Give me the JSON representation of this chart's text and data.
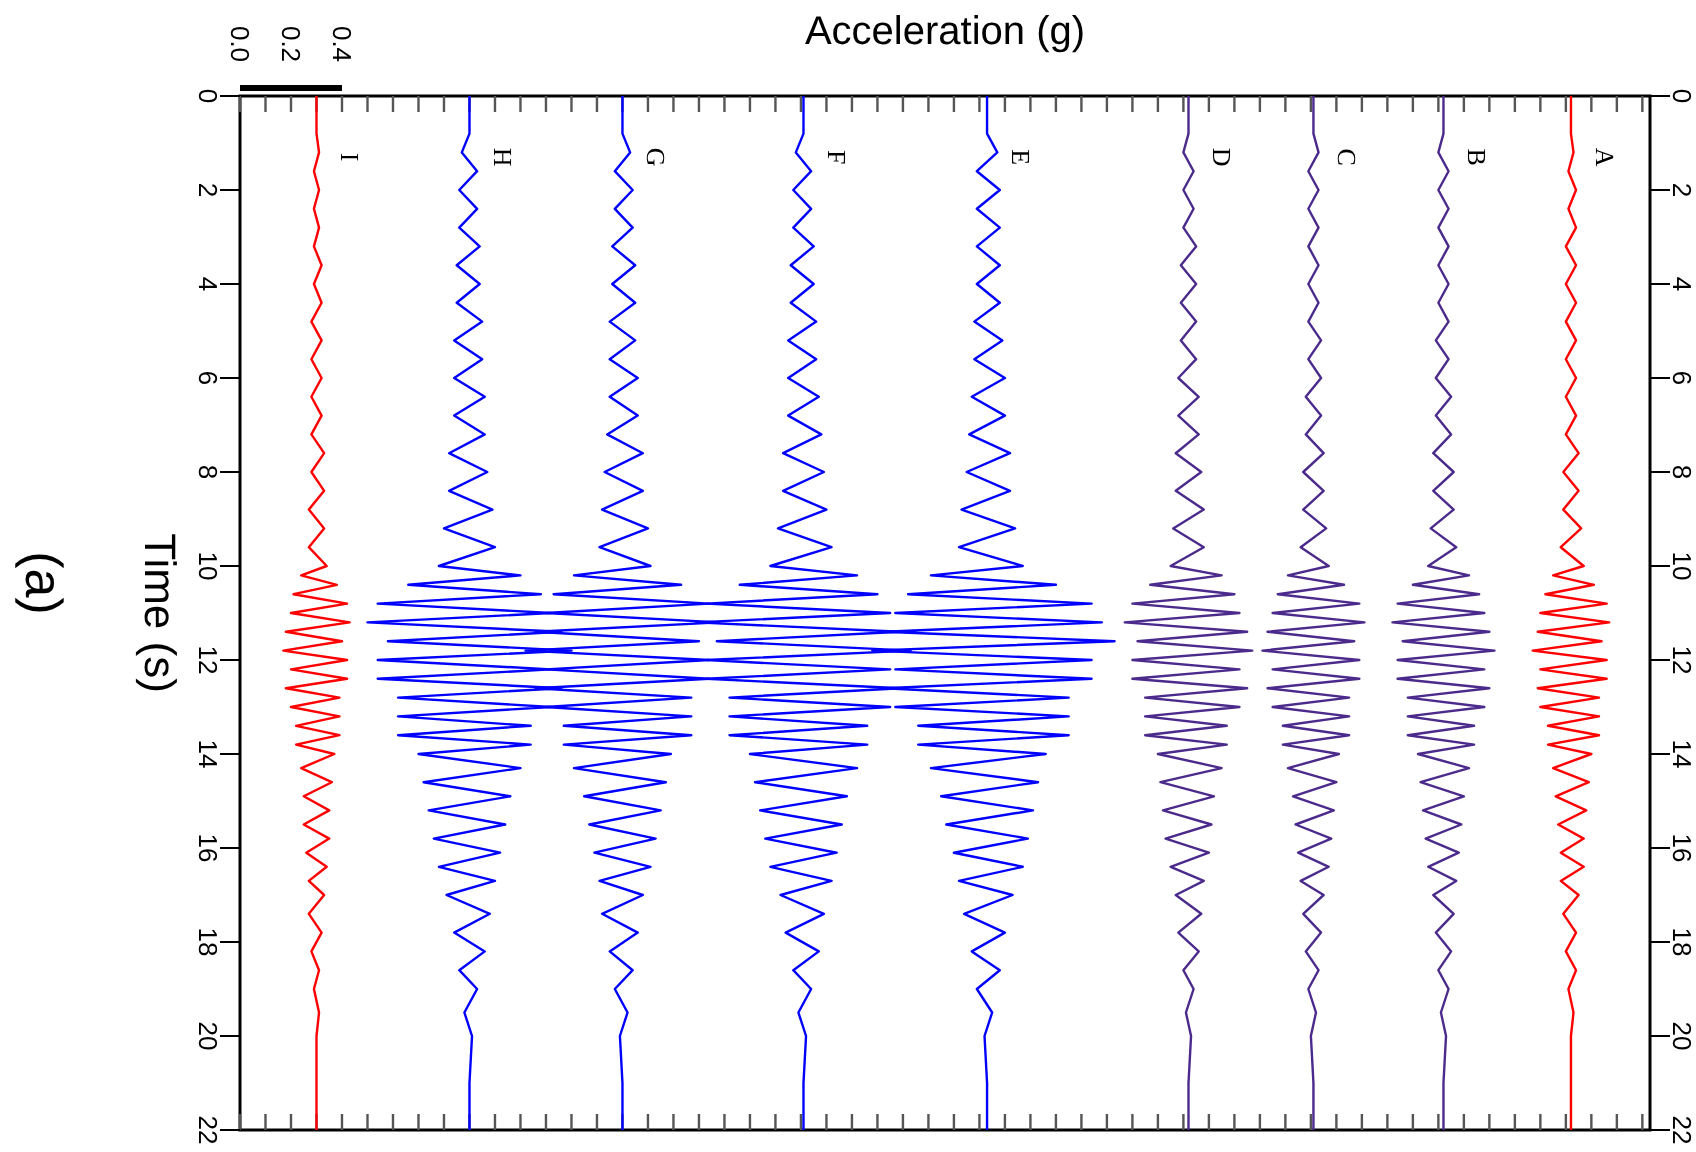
{
  "chart_data": {
    "type": "line",
    "xlabel": "Acceleration (g)",
    "ylabel": "Time (s)",
    "annotations": [
      "(a)"
    ],
    "xlim": [
      0,
      5.53
    ],
    "xticks": [
      {
        "value": 0,
        "label": "0.0"
      },
      {
        "value": 0.1,
        "label": null
      },
      0.2,
      {
        "value": 0.3,
        "label": null
      },
      0.4,
      {
        "value": 0.5,
        "label": null
      },
      {
        "value": 0.6,
        "label": null
      },
      {
        "value": 0.7,
        "label": null
      },
      {
        "value": 0.8,
        "label": null
      },
      {
        "value": 0.9,
        "label": null
      },
      {
        "value": 1,
        "label": null
      },
      {
        "value": 1.1,
        "label": null
      },
      {
        "value": 1.2,
        "label": null
      },
      {
        "value": 1.3,
        "label": null
      },
      {
        "value": 1.4,
        "label": null
      },
      {
        "value": 1.5,
        "label": null
      },
      {
        "value": 1.6,
        "label": null
      },
      {
        "value": 1.7,
        "label": null
      },
      {
        "value": 1.8,
        "label": null
      },
      {
        "value": 1.9,
        "label": null
      },
      {
        "value": 2,
        "label": null
      },
      {
        "value": 2.1,
        "label": null
      },
      {
        "value": 2.2,
        "label": null
      },
      {
        "value": 2.3,
        "label": null
      },
      {
        "value": 2.4,
        "label": null
      },
      {
        "value": 2.5,
        "label": null
      },
      {
        "value": 2.6,
        "label": null
      },
      {
        "value": 2.7,
        "label": null
      },
      {
        "value": 2.8,
        "label": null
      },
      {
        "value": 2.9,
        "label": null
      },
      {
        "value": 3,
        "label": null
      },
      {
        "value": 3.1,
        "label": null
      },
      {
        "value": 3.2,
        "label": null
      },
      {
        "value": 3.3,
        "label": null
      },
      {
        "value": 3.4,
        "label": null
      },
      {
        "value": 3.5,
        "label": null
      },
      {
        "value": 3.6,
        "label": null
      },
      {
        "value": 3.7,
        "label": null
      },
      {
        "value": 3.8,
        "label": null
      },
      {
        "value": 3.9,
        "label": null
      },
      {
        "value": 4,
        "label": null
      },
      {
        "value": 4.1,
        "label": null
      },
      {
        "value": 4.2,
        "label": null
      },
      {
        "value": 4.3,
        "label": null
      },
      {
        "value": 4.4,
        "label": null
      },
      {
        "value": 4.5,
        "label": null
      },
      {
        "value": 4.6,
        "label": null
      },
      {
        "value": 4.7,
        "label": null
      },
      {
        "value": 4.8,
        "label": null
      },
      {
        "value": 4.9,
        "label": null
      },
      {
        "value": 5,
        "label": null
      },
      {
        "value": 5.1,
        "label": null
      },
      {
        "value": 5.2,
        "label": null
      },
      {
        "value": 5.3,
        "label": null
      },
      {
        "value": 5.4,
        "label": null
      },
      {
        "value": 5.5,
        "label": null
      }
    ],
    "ylim": [
      22,
      0
    ],
    "yticks": [
      0,
      2,
      4,
      6,
      8,
      10,
      12,
      14,
      16,
      18,
      20,
      22
    ],
    "y2lim": [
      22,
      0
    ],
    "y2ticks": [
      0,
      2,
      4,
      6,
      8,
      10,
      12,
      14,
      16,
      18,
      20,
      22
    ],
    "series": [
      {
        "name": "A",
        "color": "#ff0000",
        "x": [
          5.22,
          5.22,
          5.23,
          5.21,
          5.24,
          5.21,
          5.24,
          5.2,
          5.24,
          5.2,
          5.24,
          5.2,
          5.24,
          5.2,
          5.24,
          5.2,
          5.24,
          5.2,
          5.25,
          5.19,
          5.25,
          5.19,
          5.26,
          5.18,
          5.27,
          5.15,
          5.31,
          5.12,
          5.36,
          5.1,
          5.37,
          5.09,
          5.34,
          5.07,
          5.36,
          5.1,
          5.36,
          5.09,
          5.33,
          5.1,
          5.33,
          5.13,
          5.33,
          5.13,
          5.3,
          5.15,
          5.29,
          5.16,
          5.28,
          5.17,
          5.27,
          5.18,
          5.27,
          5.18,
          5.25,
          5.19,
          5.24,
          5.2,
          5.24,
          5.21,
          5.23,
          5.22,
          5.22,
          5.22
        ],
        "values": [
          0,
          0.8,
          1.2,
          1.6,
          2,
          2.4,
          2.8,
          3.2,
          3.6,
          4,
          4.4,
          4.8,
          5.2,
          5.6,
          6,
          6.4,
          6.8,
          7.2,
          7.6,
          8,
          8.4,
          8.8,
          9.2,
          9.6,
          10,
          10.2,
          10.4,
          10.6,
          10.8,
          11,
          11.2,
          11.4,
          11.6,
          11.8,
          12,
          12.2,
          12.4,
          12.6,
          12.8,
          13,
          13.2,
          13.4,
          13.6,
          13.8,
          14,
          14.3,
          14.6,
          14.9,
          15.2,
          15.5,
          15.8,
          16.1,
          16.4,
          16.7,
          17,
          17.4,
          17.8,
          18.2,
          18.6,
          19,
          19.5,
          20,
          21,
          22
        ]
      },
      {
        "name": "B",
        "color": "#4b2a8c",
        "x": [
          4.72,
          4.72,
          4.7,
          4.74,
          4.7,
          4.74,
          4.7,
          4.74,
          4.7,
          4.74,
          4.7,
          4.74,
          4.69,
          4.74,
          4.69,
          4.75,
          4.69,
          4.75,
          4.68,
          4.76,
          4.68,
          4.76,
          4.67,
          4.77,
          4.66,
          4.82,
          4.6,
          4.86,
          4.54,
          4.88,
          4.52,
          4.9,
          4.56,
          4.92,
          4.54,
          4.88,
          4.54,
          4.9,
          4.58,
          4.88,
          4.58,
          4.84,
          4.58,
          4.84,
          4.62,
          4.82,
          4.63,
          4.8,
          4.64,
          4.79,
          4.65,
          4.78,
          4.66,
          4.77,
          4.68,
          4.76,
          4.69,
          4.75,
          4.7,
          4.74,
          4.71,
          4.73,
          4.72,
          4.72
        ],
        "values": [
          0,
          0.8,
          1.2,
          1.6,
          2,
          2.4,
          2.8,
          3.2,
          3.6,
          4,
          4.4,
          4.8,
          5.2,
          5.6,
          6,
          6.4,
          6.8,
          7.2,
          7.6,
          8,
          8.4,
          8.8,
          9.2,
          9.6,
          10,
          10.2,
          10.4,
          10.6,
          10.8,
          11,
          11.2,
          11.4,
          11.6,
          11.8,
          12,
          12.2,
          12.4,
          12.6,
          12.8,
          13,
          13.2,
          13.4,
          13.6,
          13.8,
          14,
          14.3,
          14.6,
          14.9,
          15.2,
          15.5,
          15.8,
          16.1,
          16.4,
          16.7,
          17,
          17.4,
          17.8,
          18.2,
          18.6,
          19,
          19.5,
          20,
          21,
          22
        ]
      },
      {
        "name": "C",
        "color": "#4b2a8c",
        "x": [
          4.21,
          4.21,
          4.23,
          4.19,
          4.23,
          4.19,
          4.23,
          4.19,
          4.23,
          4.19,
          4.23,
          4.19,
          4.24,
          4.19,
          4.24,
          4.18,
          4.24,
          4.18,
          4.25,
          4.17,
          4.25,
          4.17,
          4.26,
          4.16,
          4.27,
          4.11,
          4.33,
          4.07,
          4.39,
          4.05,
          4.41,
          4.03,
          4.37,
          4.01,
          4.39,
          4.05,
          4.39,
          4.03,
          4.35,
          4.05,
          4.35,
          4.09,
          4.35,
          4.09,
          4.31,
          4.11,
          4.3,
          4.13,
          4.29,
          4.14,
          4.28,
          4.15,
          4.27,
          4.16,
          4.25,
          4.17,
          4.24,
          4.18,
          4.23,
          4.19,
          4.22,
          4.2,
          4.21,
          4.21
        ],
        "values": [
          0,
          0.8,
          1.2,
          1.6,
          2,
          2.4,
          2.8,
          3.2,
          3.6,
          4,
          4.4,
          4.8,
          5.2,
          5.6,
          6,
          6.4,
          6.8,
          7.2,
          7.6,
          8,
          8.4,
          8.8,
          9.2,
          9.6,
          10,
          10.2,
          10.4,
          10.6,
          10.8,
          11,
          11.2,
          11.4,
          11.6,
          11.8,
          12,
          12.2,
          12.4,
          12.6,
          12.8,
          13,
          13.2,
          13.4,
          13.6,
          13.8,
          14,
          14.3,
          14.6,
          14.9,
          15.2,
          15.5,
          15.8,
          16.1,
          16.4,
          16.7,
          17,
          17.4,
          17.8,
          18.2,
          18.6,
          19,
          19.5,
          20,
          21,
          22
        ]
      },
      {
        "name": "D",
        "color": "#4b2a8c",
        "x": [
          3.72,
          3.72,
          3.7,
          3.74,
          3.7,
          3.74,
          3.7,
          3.75,
          3.69,
          3.75,
          3.69,
          3.75,
          3.69,
          3.75,
          3.68,
          3.76,
          3.68,
          3.76,
          3.67,
          3.77,
          3.67,
          3.78,
          3.66,
          3.78,
          3.65,
          3.85,
          3.57,
          3.9,
          3.5,
          3.92,
          3.47,
          3.95,
          3.52,
          3.97,
          3.5,
          3.92,
          3.5,
          3.95,
          3.55,
          3.92,
          3.55,
          3.87,
          3.55,
          3.87,
          3.6,
          3.85,
          3.61,
          3.82,
          3.62,
          3.81,
          3.63,
          3.8,
          3.65,
          3.78,
          3.67,
          3.77,
          3.68,
          3.76,
          3.7,
          3.74,
          3.71,
          3.73,
          3.72,
          3.72
        ],
        "values": [
          0,
          0.8,
          1.2,
          1.6,
          2,
          2.4,
          2.8,
          3.2,
          3.6,
          4,
          4.4,
          4.8,
          5.2,
          5.6,
          6,
          6.4,
          6.8,
          7.2,
          7.6,
          8,
          8.4,
          8.8,
          9.2,
          9.6,
          10,
          10.2,
          10.4,
          10.6,
          10.8,
          11,
          11.2,
          11.4,
          11.6,
          11.8,
          12,
          12.2,
          12.4,
          12.6,
          12.8,
          13,
          13.2,
          13.4,
          13.6,
          13.8,
          14,
          14.3,
          14.6,
          14.9,
          15.2,
          15.5,
          15.8,
          16.1,
          16.4,
          16.7,
          17,
          17.4,
          17.8,
          18.2,
          18.6,
          19,
          19.5,
          20,
          21,
          22
        ]
      },
      {
        "name": "E",
        "color": "#0000ff",
        "x": [
          2.93,
          2.93,
          2.97,
          2.89,
          2.98,
          2.89,
          2.98,
          2.89,
          2.98,
          2.89,
          2.98,
          2.88,
          2.99,
          2.88,
          3.0,
          2.87,
          3.0,
          2.86,
          3.02,
          2.85,
          3.02,
          2.83,
          3.04,
          2.82,
          3.07,
          2.71,
          3.2,
          2.62,
          3.34,
          2.57,
          3.38,
          2.53,
          3.43,
          2.48,
          3.34,
          2.57,
          3.34,
          2.53,
          3.25,
          2.57,
          3.25,
          2.66,
          3.25,
          2.66,
          3.16,
          2.71,
          3.13,
          2.75,
          3.11,
          2.77,
          3.09,
          2.8,
          3.07,
          2.82,
          3.03,
          2.84,
          3.0,
          2.87,
          2.98,
          2.89,
          2.95,
          2.92,
          2.93,
          2.93
        ],
        "values": [
          0,
          0.8,
          1.2,
          1.6,
          2,
          2.4,
          2.8,
          3.2,
          3.6,
          4,
          4.4,
          4.8,
          5.2,
          5.6,
          6,
          6.4,
          6.8,
          7.2,
          7.6,
          8,
          8.4,
          8.8,
          9.2,
          9.6,
          10,
          10.2,
          10.4,
          10.6,
          10.8,
          11,
          11.2,
          11.4,
          11.6,
          11.8,
          12,
          12.2,
          12.4,
          12.6,
          12.8,
          13,
          13.2,
          13.4,
          13.6,
          13.8,
          14,
          14.3,
          14.6,
          14.9,
          15.2,
          15.5,
          15.8,
          16.1,
          16.4,
          16.7,
          17,
          17.4,
          17.8,
          18.2,
          18.6,
          19,
          19.5,
          20,
          21,
          22
        ]
      },
      {
        "name": "F",
        "color": "#0000ff",
        "x": [
          2.21,
          2.21,
          2.18,
          2.24,
          2.17,
          2.24,
          2.17,
          2.25,
          2.16,
          2.25,
          2.16,
          2.26,
          2.15,
          2.26,
          2.15,
          2.27,
          2.15,
          2.28,
          2.13,
          2.29,
          2.13,
          2.3,
          2.11,
          2.32,
          2.08,
          2.42,
          1.96,
          2.5,
          1.83,
          2.55,
          1.79,
          2.59,
          1.87,
          2.63,
          1.83,
          2.55,
          1.83,
          2.59,
          1.92,
          2.55,
          1.92,
          2.46,
          1.92,
          2.46,
          2.0,
          2.42,
          2.02,
          2.38,
          2.04,
          2.36,
          2.06,
          2.34,
          2.08,
          2.32,
          2.12,
          2.29,
          2.14,
          2.27,
          2.17,
          2.24,
          2.19,
          2.22,
          2.21,
          2.21
        ],
        "values": [
          0,
          0.8,
          1.2,
          1.6,
          2,
          2.4,
          2.8,
          3.2,
          3.6,
          4,
          4.4,
          4.8,
          5.2,
          5.6,
          6,
          6.4,
          6.8,
          7.2,
          7.6,
          8,
          8.4,
          8.8,
          9.2,
          9.6,
          10,
          10.2,
          10.4,
          10.6,
          10.8,
          11,
          11.2,
          11.4,
          11.6,
          11.8,
          12,
          12.2,
          12.4,
          12.6,
          12.8,
          13,
          13.2,
          13.4,
          13.6,
          13.8,
          14,
          14.3,
          14.6,
          14.9,
          15.2,
          15.5,
          15.8,
          16.1,
          16.4,
          16.7,
          17,
          17.4,
          17.8,
          18.2,
          18.6,
          19,
          19.5,
          20,
          21,
          22
        ]
      },
      {
        "name": "G",
        "color": "#0000ff",
        "x": [
          1.5,
          1.5,
          1.53,
          1.47,
          1.54,
          1.47,
          1.54,
          1.46,
          1.55,
          1.46,
          1.55,
          1.45,
          1.55,
          1.45,
          1.56,
          1.45,
          1.56,
          1.44,
          1.58,
          1.43,
          1.58,
          1.42,
          1.6,
          1.41,
          1.61,
          1.31,
          1.73,
          1.23,
          1.84,
          1.2,
          1.88,
          1.16,
          1.8,
          1.12,
          1.84,
          1.2,
          1.84,
          1.16,
          1.77,
          1.2,
          1.77,
          1.27,
          1.77,
          1.27,
          1.69,
          1.31,
          1.67,
          1.35,
          1.65,
          1.37,
          1.63,
          1.39,
          1.61,
          1.41,
          1.58,
          1.42,
          1.56,
          1.45,
          1.54,
          1.47,
          1.52,
          1.49,
          1.5,
          1.5
        ],
        "values": [
          0,
          0.8,
          1.2,
          1.6,
          2,
          2.4,
          2.8,
          3.2,
          3.6,
          4,
          4.4,
          4.8,
          5.2,
          5.6,
          6,
          6.4,
          6.8,
          7.2,
          7.6,
          8,
          8.4,
          8.8,
          9.2,
          9.6,
          10,
          10.2,
          10.4,
          10.6,
          10.8,
          11,
          11.2,
          11.4,
          11.6,
          11.8,
          12,
          12.2,
          12.4,
          12.6,
          12.8,
          13,
          13.2,
          13.4,
          13.6,
          13.8,
          14,
          14.3,
          14.6,
          14.9,
          15.2,
          15.5,
          15.8,
          16.1,
          16.4,
          16.7,
          17,
          17.4,
          17.8,
          18.2,
          18.6,
          19,
          19.5,
          20,
          21,
          22
        ]
      },
      {
        "name": "H",
        "color": "#0000ff",
        "x": [
          0.9,
          0.9,
          0.87,
          0.93,
          0.86,
          0.93,
          0.86,
          0.94,
          0.85,
          0.94,
          0.85,
          0.95,
          0.84,
          0.95,
          0.84,
          0.96,
          0.84,
          0.96,
          0.82,
          0.97,
          0.82,
          0.99,
          0.8,
          1.0,
          0.78,
          1.1,
          0.66,
          1.18,
          0.54,
          1.22,
          0.5,
          1.26,
          0.58,
          1.3,
          0.54,
          1.22,
          0.54,
          1.26,
          0.62,
          1.22,
          0.62,
          1.14,
          0.62,
          1.14,
          0.7,
          1.1,
          0.72,
          1.06,
          0.74,
          1.04,
          0.76,
          1.02,
          0.78,
          1.0,
          0.81,
          0.98,
          0.84,
          0.96,
          0.86,
          0.93,
          0.88,
          0.91,
          0.9,
          0.9
        ],
        "values": [
          0,
          0.8,
          1.2,
          1.6,
          2,
          2.4,
          2.8,
          3.2,
          3.6,
          4,
          4.4,
          4.8,
          5.2,
          5.6,
          6,
          6.4,
          6.8,
          7.2,
          7.6,
          8,
          8.4,
          8.8,
          9.2,
          9.6,
          10,
          10.2,
          10.4,
          10.6,
          10.8,
          11,
          11.2,
          11.4,
          11.6,
          11.8,
          12,
          12.2,
          12.4,
          12.6,
          12.8,
          13,
          13.2,
          13.4,
          13.6,
          13.8,
          14,
          14.3,
          14.6,
          14.9,
          15.2,
          15.5,
          15.8,
          16.1,
          16.4,
          16.7,
          17,
          17.4,
          17.8,
          18.2,
          18.6,
          19,
          19.5,
          20,
          21,
          22
        ]
      },
      {
        "name": "I",
        "color": "#ff0000",
        "x": [
          0.3,
          0.3,
          0.31,
          0.29,
          0.31,
          0.29,
          0.31,
          0.29,
          0.32,
          0.29,
          0.32,
          0.28,
          0.32,
          0.28,
          0.32,
          0.28,
          0.32,
          0.28,
          0.33,
          0.28,
          0.33,
          0.27,
          0.33,
          0.27,
          0.34,
          0.24,
          0.38,
          0.21,
          0.42,
          0.2,
          0.43,
          0.18,
          0.4,
          0.17,
          0.42,
          0.2,
          0.42,
          0.18,
          0.39,
          0.2,
          0.39,
          0.22,
          0.39,
          0.22,
          0.37,
          0.24,
          0.36,
          0.25,
          0.35,
          0.25,
          0.35,
          0.26,
          0.34,
          0.27,
          0.33,
          0.27,
          0.32,
          0.28,
          0.31,
          0.29,
          0.31,
          0.3,
          0.3,
          0.3
        ],
        "values": [
          0,
          0.8,
          1.2,
          1.6,
          2,
          2.4,
          2.8,
          3.2,
          3.6,
          4,
          4.4,
          4.8,
          5.2,
          5.6,
          6,
          6.4,
          6.8,
          7.2,
          7.6,
          8,
          8.4,
          8.8,
          9.2,
          9.6,
          10,
          10.2,
          10.4,
          10.6,
          10.8,
          11,
          11.2,
          11.4,
          11.6,
          11.8,
          12,
          12.2,
          12.4,
          12.6,
          12.8,
          13,
          13.2,
          13.4,
          13.6,
          13.8,
          14,
          14.3,
          14.6,
          14.9,
          15.2,
          15.5,
          15.8,
          16.1,
          16.4,
          16.7,
          17,
          17.4,
          17.8,
          18.2,
          18.6,
          19,
          19.5,
          20,
          21,
          22
        ]
      }
    ]
  }
}
